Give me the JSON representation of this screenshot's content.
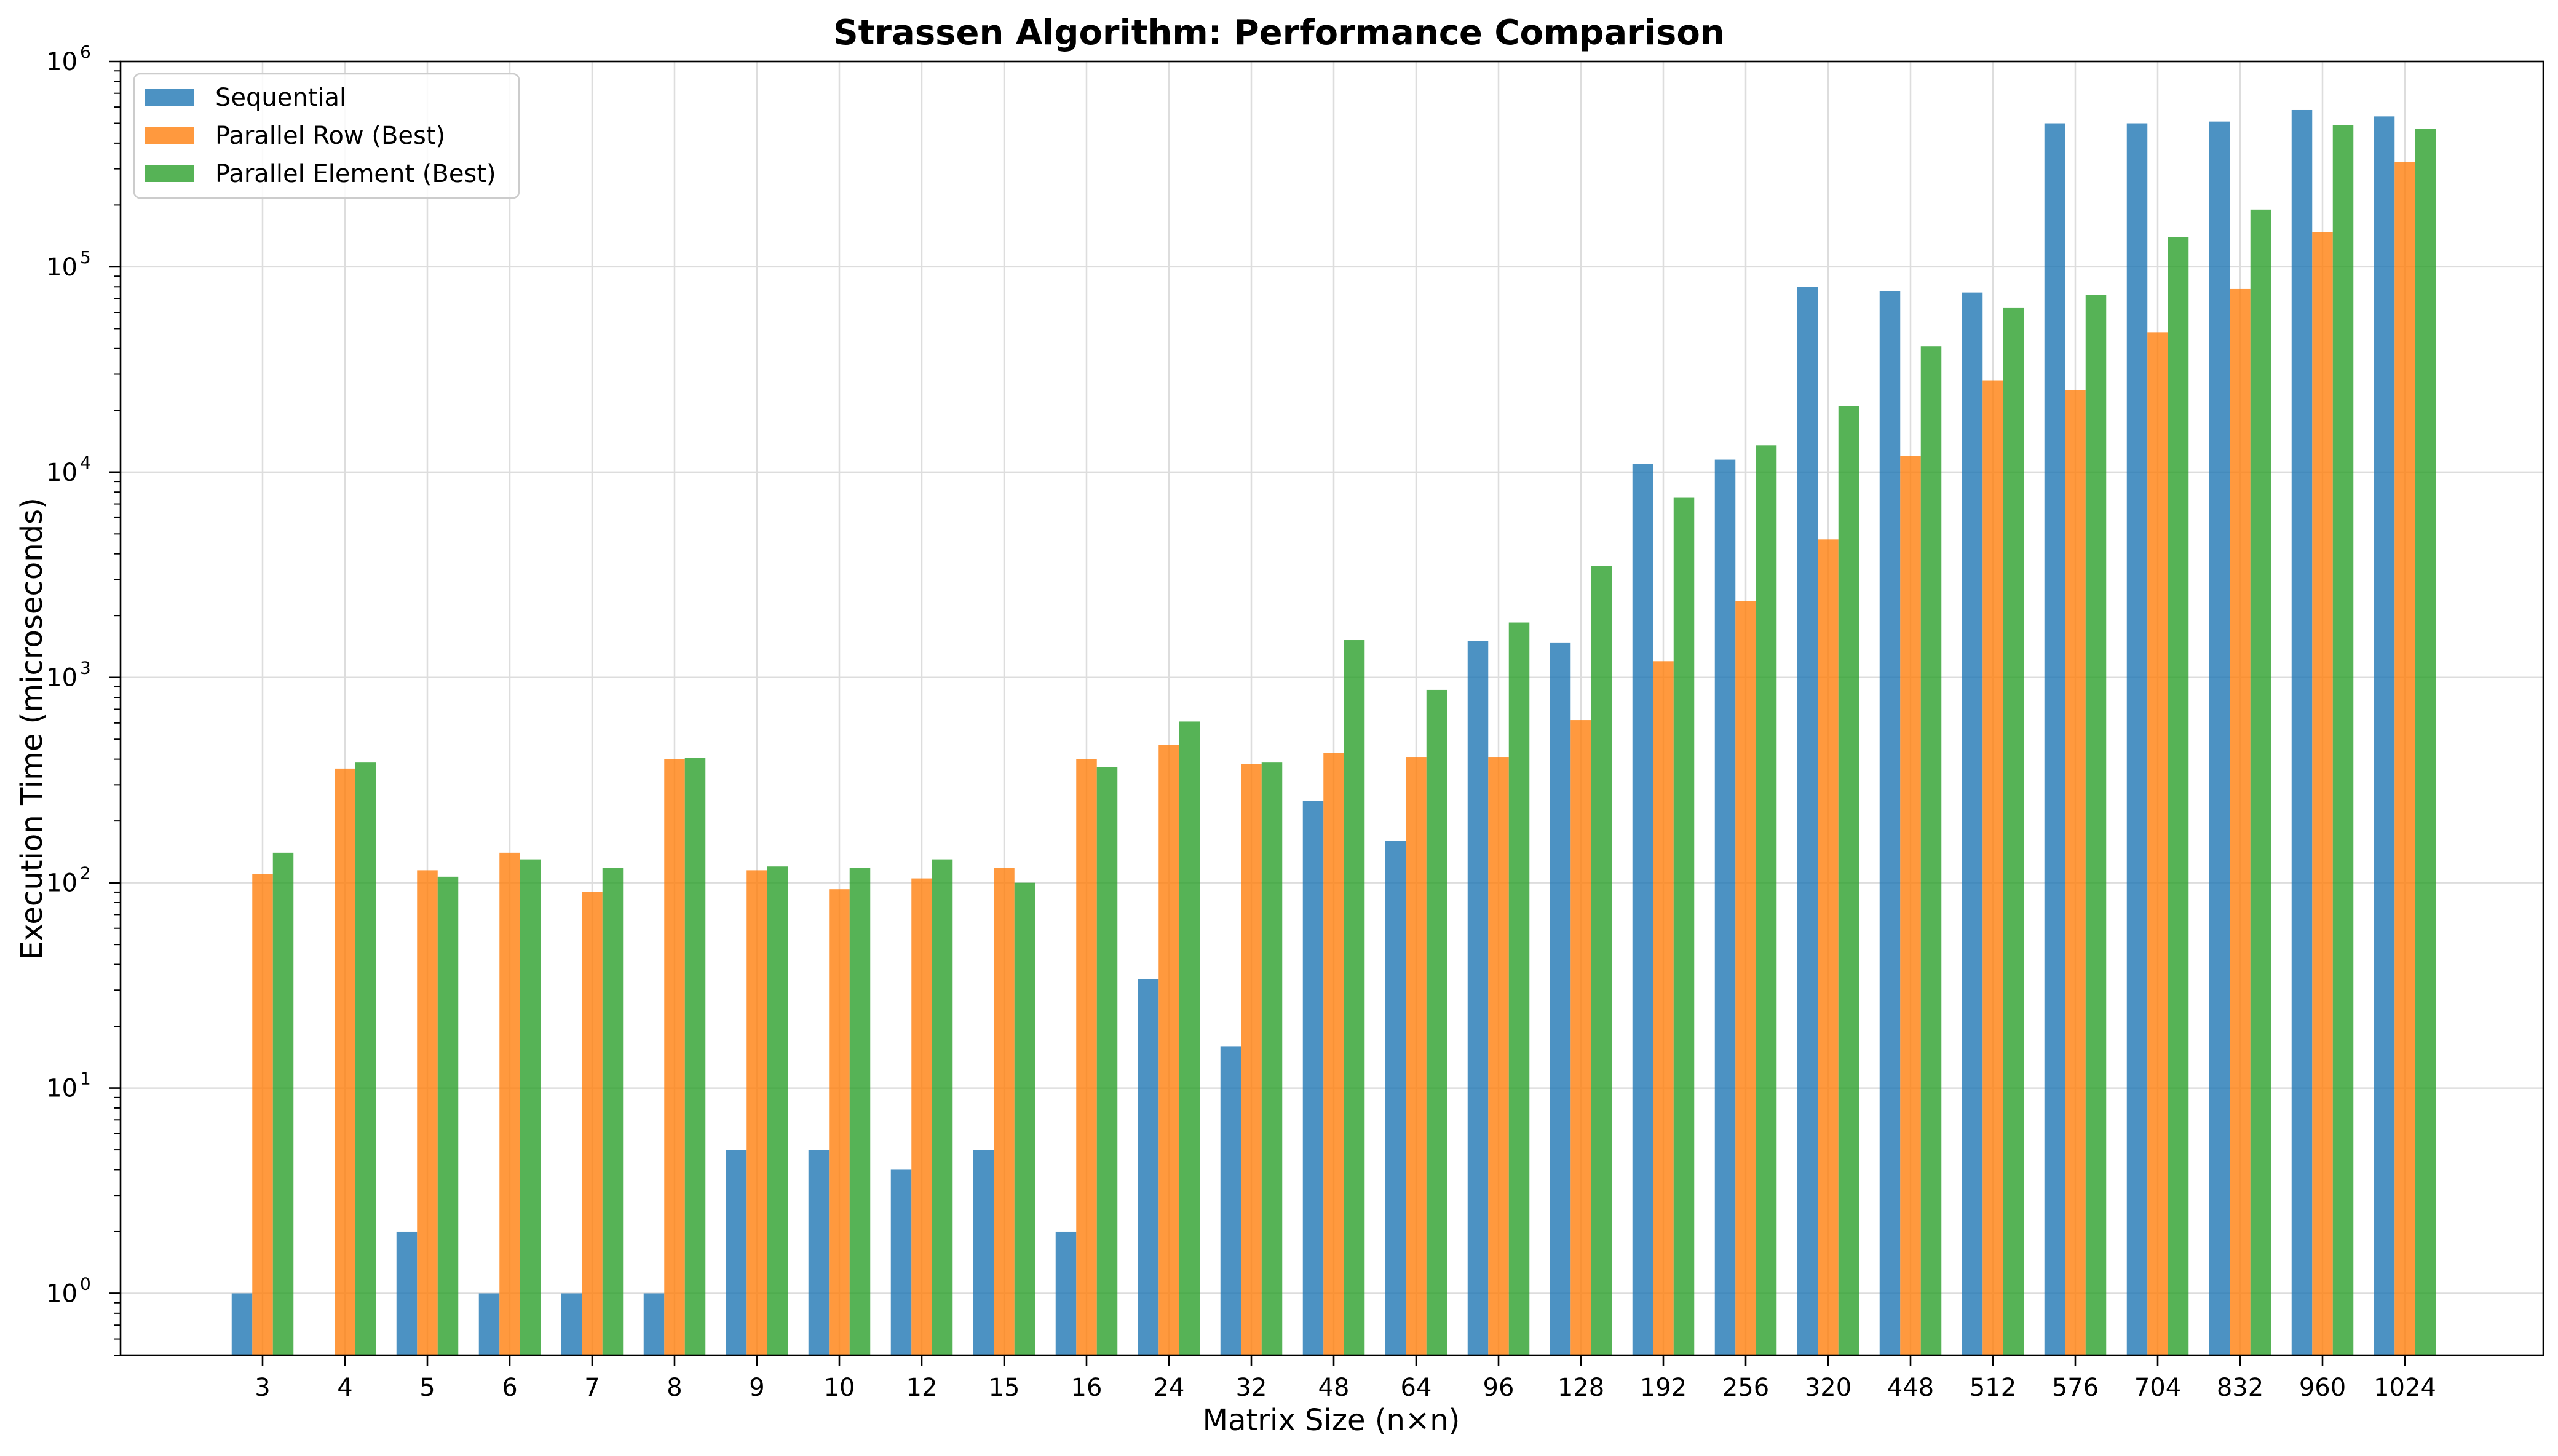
{
  "chart_data": {
    "type": "bar",
    "title": "Strassen Algorithm: Performance Comparison",
    "xlabel": "Matrix Size (n×n)",
    "ylabel": "Execution Time (microseconds)",
    "yscale": "log",
    "ylim": [
      0.5,
      1000000
    ],
    "yticks": [
      {
        "value": 1,
        "base": "10",
        "exp": "0"
      },
      {
        "value": 10,
        "base": "10",
        "exp": "1"
      },
      {
        "value": 100,
        "base": "10",
        "exp": "2"
      },
      {
        "value": 1000,
        "base": "10",
        "exp": "3"
      },
      {
        "value": 10000,
        "base": "10",
        "exp": "4"
      },
      {
        "value": 100000,
        "base": "10",
        "exp": "5"
      },
      {
        "value": 1000000,
        "base": "10",
        "exp": "6"
      }
    ],
    "grid": true,
    "legend_position": "top-left",
    "categories": [
      "3",
      "4",
      "5",
      "6",
      "7",
      "8",
      "9",
      "10",
      "12",
      "15",
      "16",
      "24",
      "32",
      "48",
      "64",
      "96",
      "128",
      "192",
      "256",
      "320",
      "448",
      "512",
      "576",
      "704",
      "832",
      "960",
      "1024"
    ],
    "series": [
      {
        "name": "Sequential",
        "color": "#1f77b4",
        "values": [
          1,
          null,
          2,
          1,
          1,
          1,
          5,
          5,
          4,
          5,
          2,
          34,
          16,
          250,
          160,
          1500,
          1480,
          11000,
          11500,
          80000,
          76000,
          75000,
          500000,
          500000,
          510000,
          580000,
          540000
        ]
      },
      {
        "name": "Parallel Row (Best)",
        "color": "#ff7f0e",
        "values": [
          110,
          360,
          115,
          140,
          90,
          400,
          115,
          93,
          105,
          118,
          400,
          470,
          380,
          430,
          410,
          410,
          620,
          1200,
          2350,
          4700,
          12000,
          28000,
          25000,
          48000,
          78000,
          148000,
          325000
        ]
      },
      {
        "name": "Parallel Element (Best)",
        "color": "#2ca02c",
        "values": [
          140,
          385,
          107,
          130,
          118,
          405,
          120,
          118,
          130,
          100,
          365,
          610,
          385,
          1520,
          870,
          1850,
          3500,
          7500,
          13500,
          21000,
          41000,
          63000,
          73000,
          140000,
          190000,
          490000,
          470000
        ]
      }
    ]
  }
}
